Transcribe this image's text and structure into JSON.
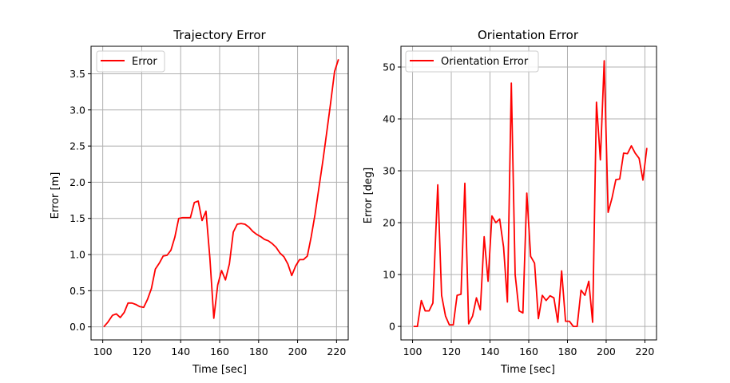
{
  "chart_data": [
    {
      "type": "line",
      "title": "Trajectory Error",
      "xlabel": "Time [sec]",
      "ylabel": "Error [m]",
      "xlim": [
        94,
        226
      ],
      "ylim": [
        -0.18,
        3.88
      ],
      "xticks": [
        100,
        120,
        140,
        160,
        180,
        200,
        220
      ],
      "yticks": [
        0.0,
        0.5,
        1.0,
        1.5,
        2.0,
        2.5,
        3.0,
        3.5
      ],
      "grid": true,
      "legend": "top-left",
      "series": [
        {
          "name": "Error",
          "color": "#ff0000",
          "x": [
            100.5,
            102.5,
            105,
            107,
            109,
            111,
            113,
            115,
            117,
            119,
            121,
            123,
            125,
            127,
            129,
            131,
            133,
            135,
            137,
            139,
            141,
            143,
            145,
            147,
            149,
            151,
            153,
            155,
            157,
            159,
            161,
            163,
            165,
            167,
            169,
            171,
            173,
            175,
            177,
            179,
            181,
            183,
            185,
            187,
            189,
            191,
            193,
            195,
            197,
            199,
            201,
            203,
            205,
            207,
            209,
            211,
            213,
            215,
            217,
            219,
            221
          ],
          "y": [
            0.0,
            0.06,
            0.16,
            0.18,
            0.13,
            0.2,
            0.33,
            0.33,
            0.31,
            0.28,
            0.27,
            0.38,
            0.53,
            0.8,
            0.88,
            0.98,
            0.99,
            1.06,
            1.24,
            1.5,
            1.51,
            1.51,
            1.51,
            1.72,
            1.74,
            1.47,
            1.6,
            0.95,
            0.12,
            0.58,
            0.78,
            0.65,
            0.87,
            1.31,
            1.42,
            1.43,
            1.42,
            1.38,
            1.32,
            1.28,
            1.25,
            1.21,
            1.19,
            1.15,
            1.1,
            1.02,
            0.97,
            0.87,
            0.71,
            0.84,
            0.93,
            0.93,
            0.98,
            1.25,
            1.56,
            1.93,
            2.3,
            2.7,
            3.1,
            3.53,
            3.7
          ]
        }
      ]
    },
    {
      "type": "line",
      "title": "Orientation Error",
      "xlabel": "Time [sec]",
      "ylabel": "Error [deg]",
      "xlim": [
        94,
        226
      ],
      "ylim": [
        -2.6,
        54.0
      ],
      "xticks": [
        100,
        120,
        140,
        160,
        180,
        200,
        220
      ],
      "yticks": [
        0,
        10,
        20,
        30,
        40,
        50
      ],
      "grid": true,
      "legend": "top-left",
      "series": [
        {
          "name": "Orientation Error",
          "color": "#ff0000",
          "x": [
            100.5,
            102.5,
            104.5,
            106.5,
            108.5,
            110.5,
            113,
            115,
            117,
            119,
            121,
            123,
            125,
            127,
            129,
            131,
            133,
            135,
            137,
            139,
            141,
            143,
            145,
            147,
            149,
            151,
            153,
            155,
            157,
            159,
            161,
            163,
            165,
            167,
            169,
            171,
            173,
            175,
            177,
            179,
            181,
            183,
            185,
            187,
            189,
            191,
            193,
            195,
            197,
            199,
            201,
            203,
            205,
            207,
            209,
            211,
            213,
            215,
            217,
            219,
            221
          ],
          "y": [
            0,
            0,
            5,
            3,
            3,
            4.5,
            27.3,
            6,
            2,
            0.3,
            0.3,
            6,
            6.2,
            27.6,
            0.5,
            2,
            5.5,
            3.2,
            17.3,
            8.7,
            21.3,
            20,
            20.7,
            15.3,
            4.7,
            46.9,
            10,
            3,
            2.6,
            25.7,
            13.5,
            12.2,
            1.5,
            6,
            5,
            5.9,
            5.5,
            0.8,
            10.7,
            1,
            1,
            0,
            0,
            7,
            6,
            8.7,
            0.8,
            43.2,
            32.1,
            51.2,
            22,
            24.7,
            28.3,
            28.4,
            33.4,
            33.3,
            34.8,
            33.4,
            32.4,
            28.2,
            34.4
          ]
        }
      ]
    }
  ]
}
